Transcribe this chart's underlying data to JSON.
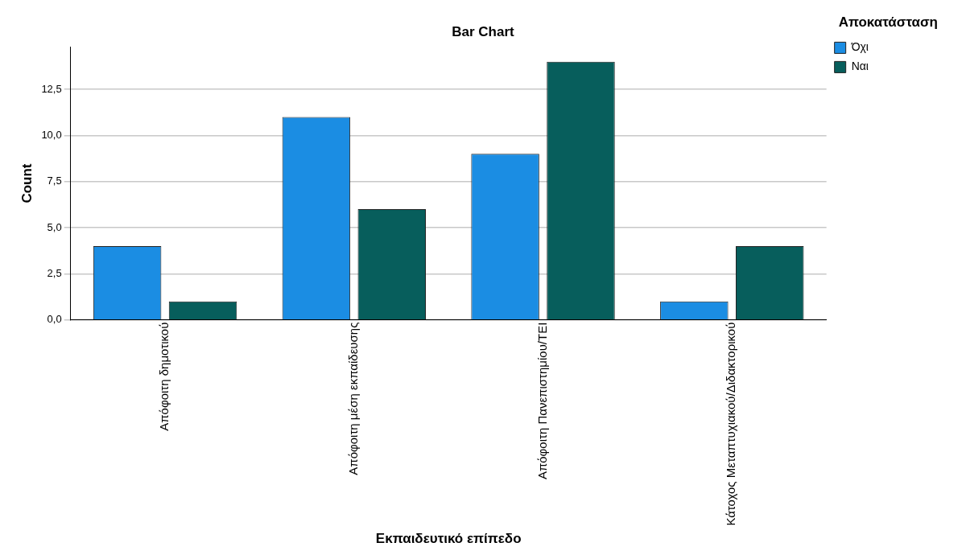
{
  "chart_data": {
    "type": "bar",
    "title": "Bar Chart",
    "xlabel": "Εκπαιδευτικό επίπεδο",
    "ylabel": "Count",
    "legend_title": "Αποκατάσταση",
    "categories": [
      "Απόφοιτη δημοτικού",
      "Απόφοιτη μέση εκπαίδευσης",
      "Απόφοιτη Πανεπιστημίου/ΤΕΙ",
      "Κάτοχος Μεταπτυχιακού/Διδακτορικού"
    ],
    "series": [
      {
        "name": "Όχι",
        "color": "#1b8de3",
        "values": [
          4,
          11,
          9,
          1
        ]
      },
      {
        "name": "Ναι",
        "color": "#075e5c",
        "values": [
          1,
          6,
          14,
          4
        ]
      }
    ],
    "ylim": [
      0,
      14.8
    ],
    "yticks": [
      {
        "value": 0,
        "label": "0,0"
      },
      {
        "value": 2.5,
        "label": "2,5"
      },
      {
        "value": 5,
        "label": "5,0"
      },
      {
        "value": 7.5,
        "label": "7,5"
      },
      {
        "value": 10,
        "label": "10,0"
      },
      {
        "value": 12.5,
        "label": "12,5"
      }
    ],
    "grid": "y",
    "legend": "top right"
  }
}
